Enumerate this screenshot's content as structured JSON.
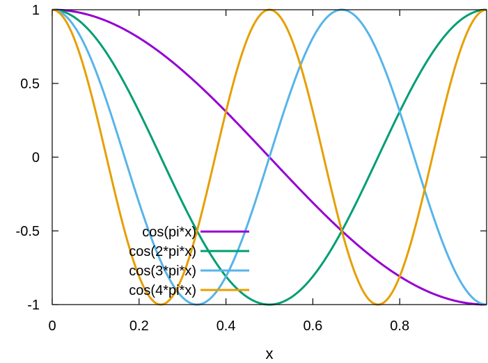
{
  "chart_data": {
    "type": "line",
    "title": "",
    "xlabel": "x",
    "ylabel": "",
    "xlim": [
      0,
      1
    ],
    "ylim": [
      -1,
      1
    ],
    "xticks": [
      0,
      0.2,
      0.4,
      0.6,
      0.8
    ],
    "xtick_labels": [
      "0",
      "0.2",
      "0.4",
      "0.6",
      "0.8"
    ],
    "yticks": [
      -1,
      -0.5,
      0,
      0.5,
      1
    ],
    "ytick_labels": [
      "-1",
      "-0.5",
      "0",
      "0.5",
      "1"
    ],
    "grid": false,
    "legend_position": "bottom-left",
    "series": [
      {
        "name": "cos(pi*x)",
        "color": "#9400d3",
        "frequency": 1,
        "x": [
          0,
          0.1,
          0.2,
          0.3,
          0.4,
          0.5,
          0.6,
          0.7,
          0.8,
          0.9,
          1.0
        ],
        "y": [
          1,
          0.951,
          0.809,
          0.588,
          0.309,
          0,
          -0.309,
          -0.588,
          -0.809,
          -0.951,
          -1
        ]
      },
      {
        "name": "cos(2*pi*x)",
        "color": "#009e73",
        "frequency": 2,
        "x": [
          0,
          0.1,
          0.2,
          0.3,
          0.4,
          0.5,
          0.6,
          0.7,
          0.8,
          0.9,
          1.0
        ],
        "y": [
          1,
          0.809,
          0.309,
          -0.309,
          -0.809,
          -1,
          -0.809,
          -0.309,
          0.309,
          0.809,
          1
        ]
      },
      {
        "name": "cos(3*pi*x)",
        "color": "#56b4e9",
        "frequency": 3,
        "x": [
          0,
          0.1,
          0.2,
          0.3,
          0.4,
          0.5,
          0.6,
          0.7,
          0.8,
          0.9,
          1.0
        ],
        "y": [
          1,
          0.588,
          -0.309,
          -0.951,
          -0.809,
          0,
          0.809,
          0.951,
          0.309,
          -0.588,
          -1
        ]
      },
      {
        "name": "cos(4*pi*x)",
        "color": "#e69f00",
        "frequency": 4,
        "x": [
          0,
          0.1,
          0.2,
          0.3,
          0.4,
          0.5,
          0.6,
          0.7,
          0.8,
          0.9,
          1.0
        ],
        "y": [
          1,
          0.309,
          -0.809,
          -0.809,
          0.309,
          1,
          0.309,
          -0.809,
          -0.809,
          0.309,
          1
        ]
      }
    ]
  }
}
